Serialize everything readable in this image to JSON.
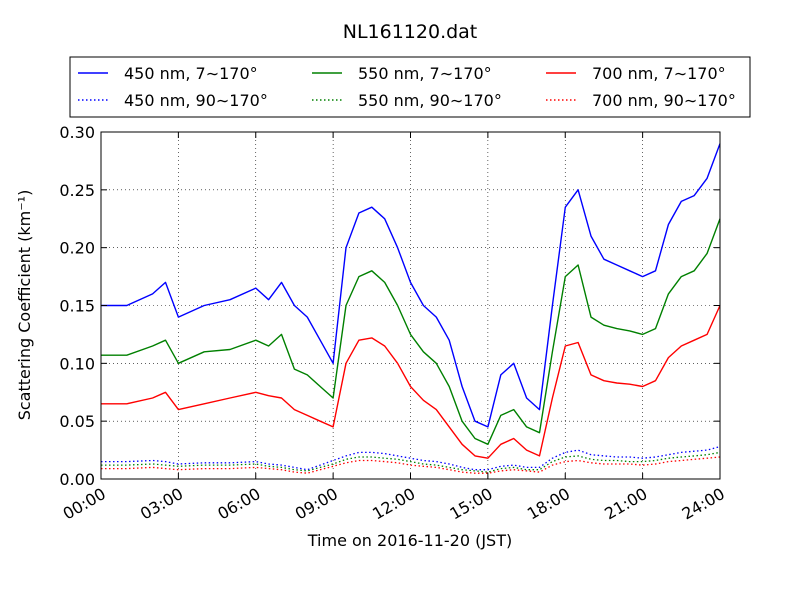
{
  "chart_data": {
    "type": "line",
    "title": "NL161120.dat",
    "xlabel": "Time on 2016-11-20 (JST)",
    "ylabel": "Scattering Coefficient (km⁻¹)",
    "x_unit": "hours",
    "xlim": [
      0,
      24
    ],
    "ylim": [
      0,
      0.3
    ],
    "xticks": [
      "00:00",
      "03:00",
      "06:00",
      "09:00",
      "12:00",
      "15:00",
      "18:00",
      "21:00",
      "24:00"
    ],
    "yticks": [
      "0.00",
      "0.05",
      "0.10",
      "0.15",
      "0.20",
      "0.25",
      "0.30"
    ],
    "grid": true,
    "legend_position": "top, above plot, 3 columns",
    "x": [
      0,
      1,
      2,
      2.5,
      3,
      4,
      5,
      6,
      6.5,
      7,
      7.5,
      8,
      8.5,
      9,
      9.5,
      10,
      10.5,
      11,
      11.5,
      12,
      12.5,
      13,
      13.5,
      14,
      14.5,
      15,
      15.5,
      16,
      16.5,
      17,
      17.5,
      18,
      18.5,
      19,
      19.5,
      20,
      20.5,
      21,
      21.5,
      22,
      22.5,
      23,
      23.5,
      24
    ],
    "series": [
      {
        "name": "450 nm, 7∼170°",
        "color": "#0000ff",
        "style": "solid",
        "values": [
          0.15,
          0.15,
          0.16,
          0.17,
          0.14,
          0.15,
          0.155,
          0.165,
          0.155,
          0.17,
          0.15,
          0.14,
          0.12,
          0.1,
          0.2,
          0.23,
          0.235,
          0.225,
          0.2,
          0.17,
          0.15,
          0.14,
          0.12,
          0.08,
          0.05,
          0.045,
          0.09,
          0.1,
          0.07,
          0.06,
          0.15,
          0.235,
          0.25,
          0.21,
          0.19,
          0.185,
          0.18,
          0.175,
          0.18,
          0.22,
          0.24,
          0.245,
          0.26,
          0.29
        ]
      },
      {
        "name": "550 nm, 7∼170°",
        "color": "#008000",
        "style": "solid",
        "values": [
          0.107,
          0.107,
          0.115,
          0.12,
          0.1,
          0.11,
          0.112,
          0.12,
          0.115,
          0.125,
          0.095,
          0.09,
          0.08,
          0.07,
          0.15,
          0.175,
          0.18,
          0.17,
          0.15,
          0.125,
          0.11,
          0.1,
          0.08,
          0.05,
          0.035,
          0.03,
          0.055,
          0.06,
          0.045,
          0.04,
          0.11,
          0.175,
          0.185,
          0.14,
          0.133,
          0.13,
          0.128,
          0.125,
          0.13,
          0.16,
          0.175,
          0.18,
          0.195,
          0.225
        ]
      },
      {
        "name": "700 nm, 7∼170°",
        "color": "#ff0000",
        "style": "solid",
        "values": [
          0.065,
          0.065,
          0.07,
          0.075,
          0.06,
          0.065,
          0.07,
          0.075,
          0.072,
          0.07,
          0.06,
          0.055,
          0.05,
          0.045,
          0.1,
          0.12,
          0.122,
          0.115,
          0.1,
          0.08,
          0.068,
          0.06,
          0.045,
          0.03,
          0.02,
          0.018,
          0.03,
          0.035,
          0.025,
          0.02,
          0.07,
          0.115,
          0.118,
          0.09,
          0.085,
          0.083,
          0.082,
          0.08,
          0.085,
          0.105,
          0.115,
          0.12,
          0.125,
          0.15
        ]
      },
      {
        "name": "450 nm, 90∼170°",
        "color": "#0000ff",
        "style": "dotted",
        "values": [
          0.015,
          0.015,
          0.016,
          0.015,
          0.013,
          0.014,
          0.014,
          0.015,
          0.013,
          0.012,
          0.01,
          0.008,
          0.012,
          0.016,
          0.02,
          0.023,
          0.023,
          0.022,
          0.02,
          0.018,
          0.016,
          0.015,
          0.013,
          0.01,
          0.008,
          0.008,
          0.011,
          0.012,
          0.01,
          0.01,
          0.018,
          0.023,
          0.025,
          0.021,
          0.02,
          0.019,
          0.019,
          0.018,
          0.019,
          0.021,
          0.023,
          0.024,
          0.025,
          0.028
        ]
      },
      {
        "name": "550 nm, 90∼170°",
        "color": "#008000",
        "style": "dotted",
        "values": [
          0.012,
          0.012,
          0.013,
          0.012,
          0.011,
          0.012,
          0.012,
          0.013,
          0.011,
          0.01,
          0.008,
          0.007,
          0.01,
          0.013,
          0.017,
          0.019,
          0.019,
          0.018,
          0.017,
          0.015,
          0.013,
          0.012,
          0.01,
          0.008,
          0.007,
          0.006,
          0.009,
          0.01,
          0.008,
          0.008,
          0.015,
          0.019,
          0.02,
          0.017,
          0.016,
          0.016,
          0.015,
          0.015,
          0.016,
          0.018,
          0.019,
          0.02,
          0.021,
          0.023
        ]
      },
      {
        "name": "700 nm, 90∼170°",
        "color": "#ff0000",
        "style": "dotted",
        "values": [
          0.009,
          0.009,
          0.01,
          0.009,
          0.008,
          0.009,
          0.009,
          0.01,
          0.009,
          0.008,
          0.006,
          0.005,
          0.008,
          0.011,
          0.014,
          0.016,
          0.016,
          0.015,
          0.014,
          0.012,
          0.011,
          0.01,
          0.008,
          0.006,
          0.005,
          0.005,
          0.007,
          0.008,
          0.007,
          0.006,
          0.012,
          0.015,
          0.016,
          0.014,
          0.013,
          0.013,
          0.013,
          0.012,
          0.013,
          0.015,
          0.016,
          0.017,
          0.018,
          0.019
        ]
      }
    ],
    "legend_order": [
      0,
      1,
      2,
      3,
      4,
      5
    ]
  }
}
